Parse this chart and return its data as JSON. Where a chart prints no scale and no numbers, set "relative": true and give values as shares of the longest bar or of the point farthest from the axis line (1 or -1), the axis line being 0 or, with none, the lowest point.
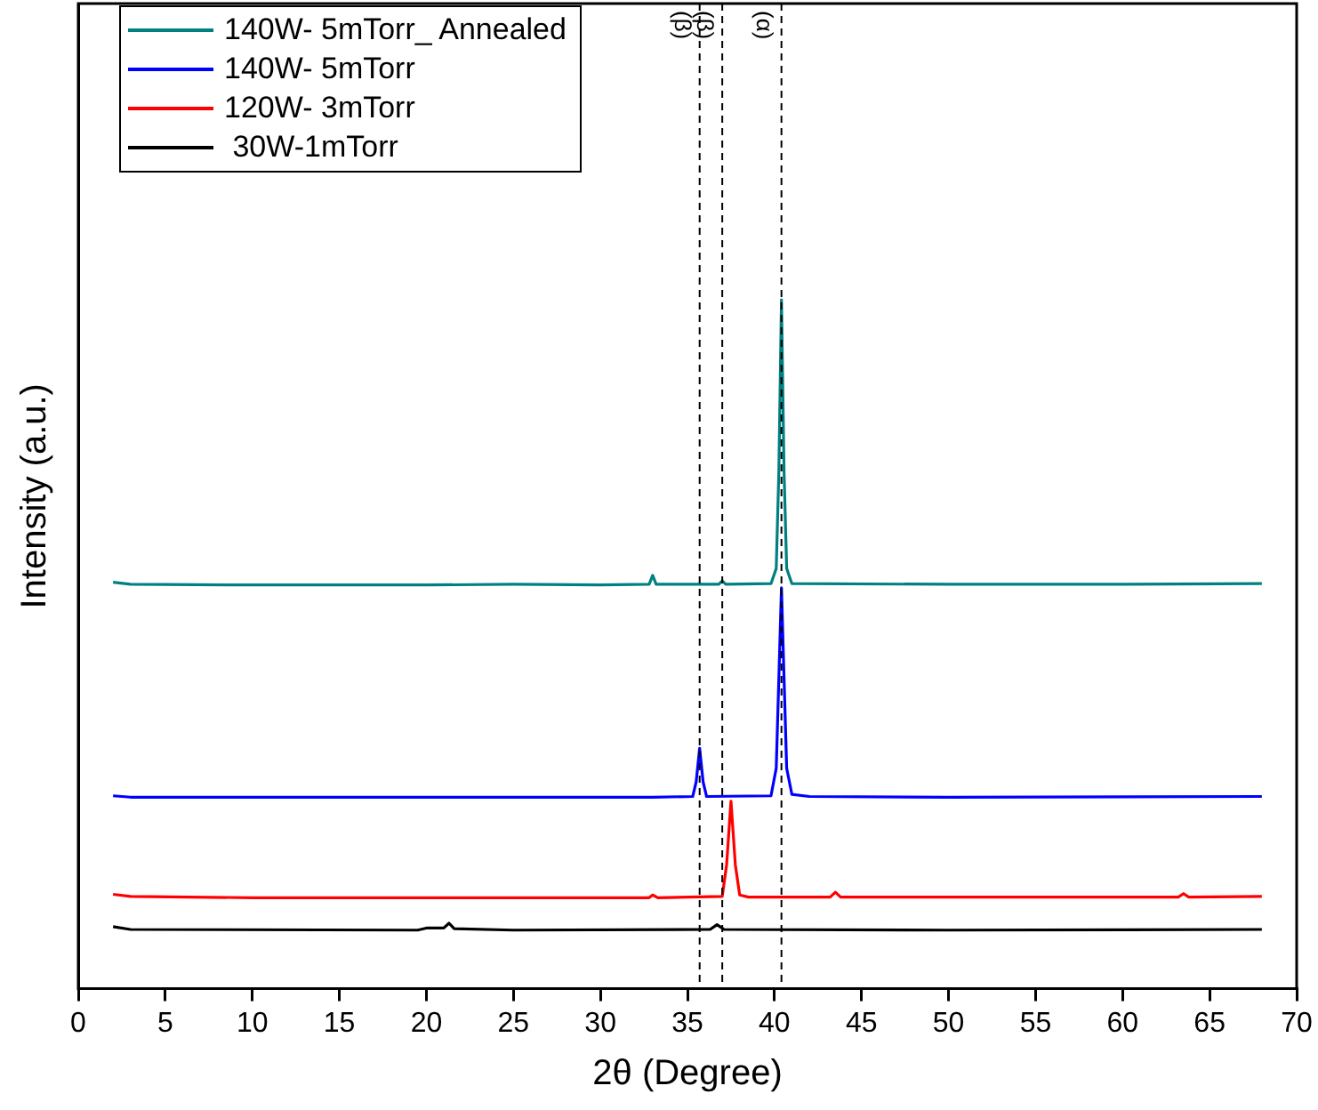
{
  "chart_data": {
    "type": "line",
    "relative": true,
    "xlabel": "2θ (Degree)",
    "ylabel": "Intensity (a.u.)",
    "xlim": [
      0,
      70
    ],
    "xticks": [
      0,
      5,
      10,
      15,
      20,
      25,
      30,
      35,
      40,
      45,
      50,
      55,
      60,
      65,
      70
    ],
    "grid": false,
    "legend": "top left",
    "marker": "none",
    "line_style": "solid",
    "tick_labels": "x",
    "ref_lines": [
      {
        "axis": "x",
        "value": 35.7,
        "label": "(β)",
        "line_style": "dashed",
        "color": "#000000"
      },
      {
        "axis": "x",
        "value": 37.0,
        "label": "(β)",
        "line_style": "dashed",
        "color": "#000000"
      },
      {
        "axis": "x",
        "value": 40.4,
        "label": "(α)",
        "line_style": "dashed",
        "color": "#000000"
      }
    ],
    "series": [
      {
        "name": "140W- 5mTorr_ Annealed",
        "color": "#008080",
        "x": [
          2,
          3,
          10,
          20,
          25,
          30,
          32.8,
          33,
          33.2,
          36.8,
          37.0,
          37.2,
          39.8,
          40.1,
          40.25,
          40.4,
          40.55,
          40.7,
          41.0,
          50,
          60,
          68
        ],
        "values": [
          0.59,
          0.587,
          0.586,
          0.586,
          0.587,
          0.586,
          0.587,
          0.6,
          0.587,
          0.587,
          0.592,
          0.587,
          0.588,
          0.61,
          0.75,
          1,
          0.75,
          0.61,
          0.588,
          0.587,
          0.587,
          0.588
        ]
      },
      {
        "name": "140W- 5mTorr",
        "color": "#0000ff",
        "x": [
          2,
          3,
          20,
          33,
          35.3,
          35.5,
          35.7,
          35.9,
          36.1,
          39.8,
          40.1,
          40.25,
          40.4,
          40.55,
          40.7,
          41.0,
          42,
          50,
          68
        ],
        "values": [
          0.28,
          0.278,
          0.278,
          0.278,
          0.279,
          0.3,
          0.349,
          0.3,
          0.279,
          0.28,
          0.32,
          0.45,
          0.582,
          0.45,
          0.32,
          0.282,
          0.279,
          0.278,
          0.279
        ]
      },
      {
        "name": "120W- 3mTorr",
        "color": "#ff0000",
        "x": [
          2,
          3,
          10,
          20,
          32.8,
          33,
          33.3,
          37.0,
          37.25,
          37.5,
          37.75,
          38.0,
          38.5,
          43.2,
          43.5,
          43.8,
          63.2,
          63.5,
          63.8,
          68
        ],
        "values": [
          0.137,
          0.134,
          0.132,
          0.132,
          0.132,
          0.136,
          0.132,
          0.134,
          0.18,
          0.272,
          0.18,
          0.136,
          0.133,
          0.133,
          0.14,
          0.133,
          0.133,
          0.138,
          0.133,
          0.134
        ]
      },
      {
        "name": " 30W-1mTorr",
        "color": "#000000",
        "x": [
          2,
          3,
          19.5,
          20,
          21.0,
          21.3,
          21.6,
          25,
          36.3,
          36.7,
          37.1,
          50,
          68
        ],
        "values": [
          0.09,
          0.086,
          0.085,
          0.088,
          0.088,
          0.095,
          0.087,
          0.085,
          0.086,
          0.093,
          0.086,
          0.085,
          0.086
        ]
      }
    ]
  }
}
